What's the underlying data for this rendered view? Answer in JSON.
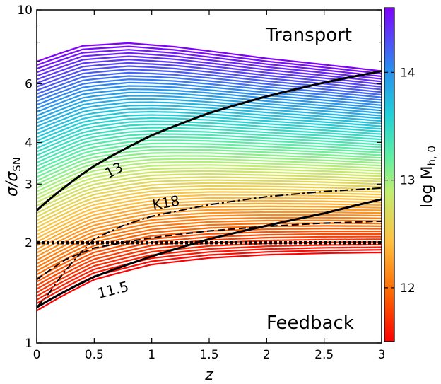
{
  "chart_data": {
    "type": "line",
    "xlabel": "z",
    "ylabel": "σ/σ",
    "ylabel_sub": "SN",
    "xlim": [
      0,
      3
    ],
    "ylim": [
      1,
      10
    ],
    "yscale": "log",
    "xticks": [
      "0",
      "0.5",
      "1",
      "1.5",
      "2",
      "2.5",
      "3"
    ],
    "yticks": [
      "1",
      "2",
      "3",
      "4",
      "6",
      "10"
    ],
    "colorbar": {
      "label": "log M",
      "label_sub": "h, 0",
      "range": [
        11.5,
        14.6
      ],
      "ticks": [
        "12",
        "13",
        "14"
      ],
      "colormap": "rainbow"
    },
    "region_labels": {
      "top": "Transport",
      "bottom": "Feedback"
    },
    "band": {
      "description_values": "family of curves colored by halo mass",
      "lower_curve": {
        "x": [
          0,
          0.5,
          1,
          1.5,
          2,
          2.5,
          3
        ],
        "y": [
          1.25,
          1.55,
          1.72,
          1.8,
          1.84,
          1.86,
          1.87
        ]
      },
      "upper_curve": {
        "x": [
          0,
          0.4,
          0.8,
          1.2,
          1.6,
          2,
          2.5,
          3
        ],
        "y": [
          7.0,
          7.8,
          7.95,
          7.75,
          7.45,
          7.15,
          6.85,
          6.55
        ]
      },
      "n_curves": 70
    },
    "series": [
      {
        "name": "13",
        "style": "solid",
        "x": [
          0,
          0.25,
          0.5,
          1,
          1.5,
          2,
          2.5,
          3
        ],
        "y": [
          2.5,
          2.95,
          3.4,
          4.2,
          4.9,
          5.5,
          6.05,
          6.55
        ]
      },
      {
        "name": "11.5",
        "style": "solid",
        "x": [
          0,
          0.25,
          0.5,
          1,
          1.5,
          2,
          2.5,
          3
        ],
        "y": [
          1.28,
          1.43,
          1.58,
          1.82,
          2.05,
          2.25,
          2.45,
          2.7
        ]
      },
      {
        "name": "K18",
        "style": "dashdot",
        "x": [
          0,
          0.1,
          0.25,
          0.5,
          0.75,
          1,
          1.5,
          2,
          2.5,
          3
        ],
        "y": [
          1.28,
          1.4,
          1.65,
          2.05,
          2.25,
          2.4,
          2.6,
          2.75,
          2.85,
          2.92
        ]
      },
      {
        "name": "",
        "style": "dashed",
        "x": [
          0,
          0.25,
          0.5,
          1,
          1.5,
          2,
          2.5,
          3
        ],
        "y": [
          1.55,
          1.78,
          1.93,
          2.07,
          2.17,
          2.24,
          2.29,
          2.32
        ]
      },
      {
        "name": "",
        "style": "dotted",
        "x": [
          0,
          3
        ],
        "y": [
          2.0,
          2.0
        ]
      }
    ]
  }
}
